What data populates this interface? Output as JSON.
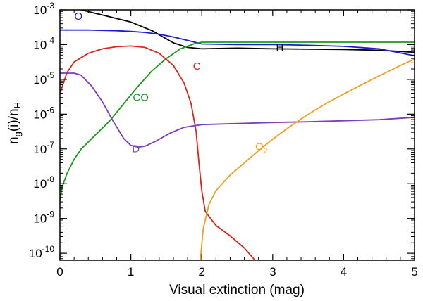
{
  "chart_data": {
    "type": "line",
    "title": "",
    "xlabel": "Visual extinction (mag)",
    "ylabel": "n_g(i)/n_H",
    "xlim": [
      0,
      5
    ],
    "ylim_log10": [
      -10.2,
      -3
    ],
    "yscale": "log",
    "x_ticks": [
      0,
      1,
      2,
      3,
      4,
      5
    ],
    "x_tick_labels": [
      "0",
      "1",
      "2",
      "3",
      "4",
      "5"
    ],
    "y_ticks": [
      -3,
      -4,
      -5,
      -6,
      -7,
      -8,
      -9,
      -10
    ],
    "y_tick_labels": [
      {
        "base": "10",
        "exp": "-3"
      },
      {
        "base": "10",
        "exp": "-4"
      },
      {
        "base": "10",
        "exp": "-5"
      },
      {
        "base": "10",
        "exp": "-6"
      },
      {
        "base": "10",
        "exp": "-7"
      },
      {
        "base": "10",
        "exp": "-8"
      },
      {
        "base": "10",
        "exp": "-9"
      },
      {
        "base": "10",
        "exp": "-10"
      }
    ],
    "series": [
      {
        "name": "H",
        "label": "H",
        "color": "#000000",
        "label_x": 3.1,
        "label_log_y": -4.18,
        "points": [
          [
            0.3,
            -3.0
          ],
          [
            0.6,
            -3.15
          ],
          [
            1.0,
            -3.35
          ],
          [
            1.3,
            -3.6
          ],
          [
            1.6,
            -3.95
          ],
          [
            1.8,
            -4.08
          ],
          [
            2.0,
            -4.12
          ],
          [
            2.5,
            -4.1
          ],
          [
            3.0,
            -4.12
          ],
          [
            3.5,
            -4.13
          ],
          [
            4.0,
            -4.14
          ],
          [
            4.5,
            -4.16
          ],
          [
            5.0,
            -4.22
          ]
        ]
      },
      {
        "name": "O",
        "label": "O",
        "color": "#1c1ccf",
        "label_x": 0.26,
        "label_log_y": -3.28,
        "points": [
          [
            0,
            -3.58
          ],
          [
            0.2,
            -3.58
          ],
          [
            0.4,
            -3.58
          ],
          [
            0.6,
            -3.59
          ],
          [
            0.8,
            -3.6
          ],
          [
            1.0,
            -3.62
          ],
          [
            1.2,
            -3.65
          ],
          [
            1.4,
            -3.7
          ],
          [
            1.6,
            -3.78
          ],
          [
            1.8,
            -3.88
          ],
          [
            2.0,
            -3.98
          ],
          [
            2.5,
            -4.0
          ],
          [
            3.0,
            -4.0
          ],
          [
            3.5,
            -4.02
          ],
          [
            4.0,
            -4.05
          ],
          [
            4.5,
            -4.12
          ],
          [
            5.0,
            -4.32
          ]
        ]
      },
      {
        "name": "CO",
        "label": "CO",
        "color": "#1a9a1a",
        "label_x": 1.14,
        "label_log_y": -5.62,
        "points": [
          [
            0,
            -8.5
          ],
          [
            0.03,
            -8.1
          ],
          [
            0.1,
            -7.7
          ],
          [
            0.2,
            -7.3
          ],
          [
            0.3,
            -7.0
          ],
          [
            0.5,
            -6.6
          ],
          [
            0.7,
            -6.2
          ],
          [
            0.9,
            -5.7
          ],
          [
            1.1,
            -5.2
          ],
          [
            1.3,
            -4.75
          ],
          [
            1.5,
            -4.4
          ],
          [
            1.7,
            -4.12
          ],
          [
            1.9,
            -3.97
          ],
          [
            2.0,
            -3.93
          ],
          [
            3.0,
            -3.93
          ],
          [
            4.0,
            -3.93
          ],
          [
            5.0,
            -3.93
          ]
        ]
      },
      {
        "name": "C",
        "label": "C",
        "color": "#d9261c",
        "label_x": 1.93,
        "label_log_y": -4.72,
        "points": [
          [
            0,
            -5.4
          ],
          [
            0.1,
            -4.8
          ],
          [
            0.2,
            -4.5
          ],
          [
            0.4,
            -4.25
          ],
          [
            0.6,
            -4.12
          ],
          [
            0.8,
            -4.06
          ],
          [
            1.0,
            -4.04
          ],
          [
            1.2,
            -4.08
          ],
          [
            1.4,
            -4.25
          ],
          [
            1.6,
            -4.6
          ],
          [
            1.75,
            -5.1
          ],
          [
            1.85,
            -5.7
          ],
          [
            1.92,
            -6.5
          ],
          [
            1.96,
            -7.4
          ],
          [
            2.0,
            -8.2
          ],
          [
            2.05,
            -8.8
          ],
          [
            2.2,
            -9.2
          ],
          [
            2.4,
            -9.5
          ],
          [
            2.6,
            -9.85
          ],
          [
            2.75,
            -10.2
          ]
        ]
      },
      {
        "name": "D",
        "label": "D",
        "color": "#7c3dbf",
        "label_x": 1.07,
        "label_log_y": -7.1,
        "points": [
          [
            0,
            -4.82
          ],
          [
            0.2,
            -4.82
          ],
          [
            0.3,
            -4.88
          ],
          [
            0.45,
            -5.2
          ],
          [
            0.6,
            -5.65
          ],
          [
            0.75,
            -6.2
          ],
          [
            0.9,
            -6.7
          ],
          [
            1.0,
            -6.9
          ],
          [
            1.1,
            -6.95
          ],
          [
            1.2,
            -6.92
          ],
          [
            1.35,
            -6.78
          ],
          [
            1.55,
            -6.55
          ],
          [
            1.75,
            -6.38
          ],
          [
            2.0,
            -6.3
          ],
          [
            2.5,
            -6.27
          ],
          [
            3.0,
            -6.24
          ],
          [
            3.5,
            -6.22
          ],
          [
            4.0,
            -6.19
          ],
          [
            4.5,
            -6.16
          ],
          [
            5.0,
            -6.09
          ]
        ]
      },
      {
        "name": "O2",
        "label": "O",
        "label_sub": "2",
        "color": "#f0a020",
        "label_x": 2.84,
        "label_log_y": -7.03,
        "points": [
          [
            1.98,
            -10.2
          ],
          [
            2.02,
            -9.3
          ],
          [
            2.1,
            -8.6
          ],
          [
            2.2,
            -8.2
          ],
          [
            2.4,
            -7.75
          ],
          [
            2.6,
            -7.4
          ],
          [
            2.8,
            -7.05
          ],
          [
            3.0,
            -6.72
          ],
          [
            3.2,
            -6.42
          ],
          [
            3.4,
            -6.14
          ],
          [
            3.6,
            -5.88
          ],
          [
            3.8,
            -5.64
          ],
          [
            4.0,
            -5.42
          ],
          [
            4.2,
            -5.21
          ],
          [
            4.4,
            -5.0
          ],
          [
            4.6,
            -4.8
          ],
          [
            4.8,
            -4.6
          ],
          [
            5.0,
            -4.42
          ]
        ]
      }
    ]
  },
  "colors": {
    "axis": "#000000",
    "background": "#ffffff"
  }
}
